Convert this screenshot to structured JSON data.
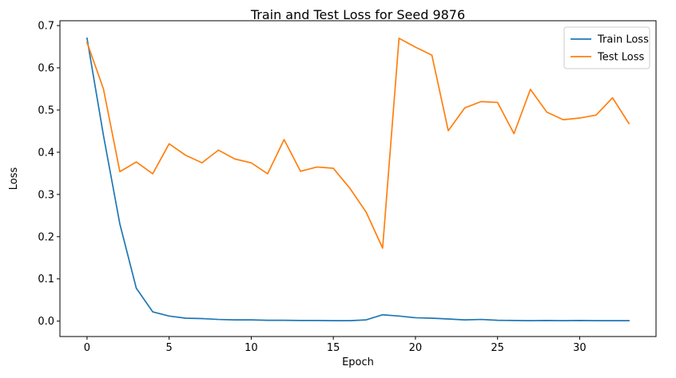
{
  "chart_data": {
    "type": "line",
    "title": "Train and Test Loss for Seed 9876",
    "xlabel": "Epoch",
    "ylabel": "Loss",
    "xlim": [
      -1.65,
      34.65
    ],
    "ylim": [
      -0.0365,
      0.7115
    ],
    "xticks": [
      0,
      5,
      10,
      15,
      20,
      25,
      30
    ],
    "yticks": [
      0.0,
      0.1,
      0.2,
      0.3,
      0.4,
      0.5,
      0.6,
      0.7
    ],
    "ytick_labels": [
      "0.0",
      "0.1",
      "0.2",
      "0.3",
      "0.4",
      "0.5",
      "0.6",
      "0.7"
    ],
    "grid": false,
    "legend_position": "top-right",
    "x": [
      0,
      1,
      2,
      3,
      4,
      5,
      6,
      7,
      8,
      9,
      10,
      11,
      12,
      13,
      14,
      15,
      16,
      17,
      18,
      19,
      20,
      21,
      22,
      23,
      24,
      25,
      26,
      27,
      28,
      29,
      30,
      31,
      32,
      33
    ],
    "series": [
      {
        "name": "Train Loss",
        "color": "#1f77b4",
        "values": [
          0.67,
          0.44,
          0.23,
          0.078,
          0.022,
          0.012,
          0.007,
          0.006,
          0.004,
          0.003,
          0.003,
          0.002,
          0.002,
          0.0015,
          0.0015,
          0.001,
          0.001,
          0.003,
          0.015,
          0.012,
          0.008,
          0.007,
          0.005,
          0.003,
          0.004,
          0.002,
          0.0015,
          0.001,
          0.0015,
          0.001,
          0.0015,
          0.001,
          0.001,
          0.001
        ]
      },
      {
        "name": "Test Loss",
        "color": "#ff7f0e",
        "values": [
          0.66,
          0.55,
          0.354,
          0.377,
          0.349,
          0.42,
          0.393,
          0.375,
          0.405,
          0.384,
          0.375,
          0.349,
          0.43,
          0.355,
          0.365,
          0.362,
          0.315,
          0.258,
          0.173,
          0.67,
          0.649,
          0.63,
          0.451,
          0.505,
          0.52,
          0.518,
          0.444,
          0.549,
          0.495,
          0.477,
          0.481,
          0.488,
          0.529,
          0.468
        ]
      }
    ]
  }
}
